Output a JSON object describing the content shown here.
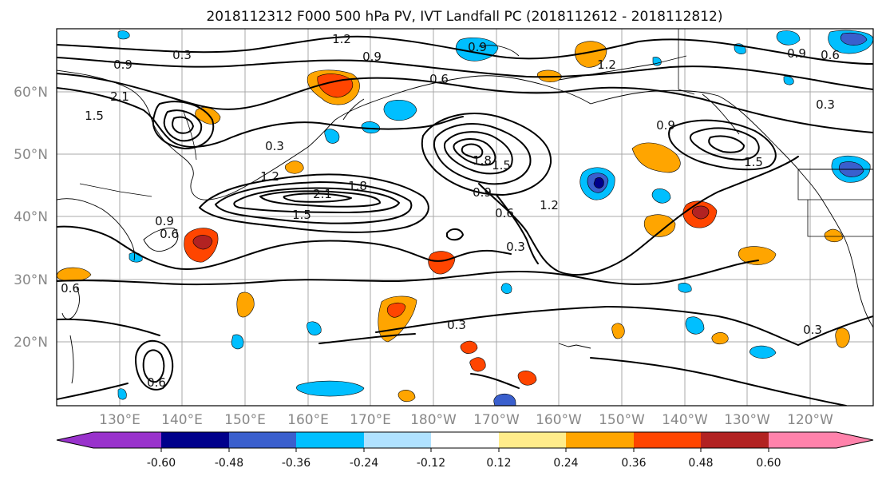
{
  "title": "2018112312 F000 500 hPa PV, IVT Landfall PC (2018112612 - 2018112812)",
  "lat_labels": [
    "60°N",
    "50°N",
    "40°N",
    "30°N",
    "20°N"
  ],
  "lon_labels": [
    "130°E",
    "140°E",
    "150°E",
    "160°E",
    "170°E",
    "180°W",
    "170°W",
    "160°W",
    "150°W",
    "140°W",
    "130°W",
    "120°W"
  ],
  "colorbar": {
    "tick_labels": [
      "-0.60",
      "-0.48",
      "-0.36",
      "-0.24",
      "-0.12",
      "0.12",
      "0.24",
      "0.36",
      "0.48",
      "0.60"
    ],
    "colors": [
      "#9932cc",
      "#00008b",
      "#3a5fcd",
      "#00bfff",
      "#b0e2ff",
      "#ffffff",
      "#ffec8b",
      "#ffa500",
      "#ff4500",
      "#b22222",
      "#ff82ab"
    ]
  },
  "contour_labels": [
    "0.3",
    "0.9",
    "1.2",
    "0.9",
    "0.6",
    "1.2",
    "0.9",
    "0.6",
    "0.9",
    "2.1",
    "1.5",
    "0.3",
    "1.2",
    "2.1",
    "1.8",
    "1.5",
    "0.9",
    "0.6",
    "1.8",
    "1.5",
    "1.2",
    "0.3",
    "0.9",
    "1.5",
    "0.3",
    "0.9",
    "0.6",
    "0.6",
    "0.3",
    "0.3",
    "0.6"
  ]
}
